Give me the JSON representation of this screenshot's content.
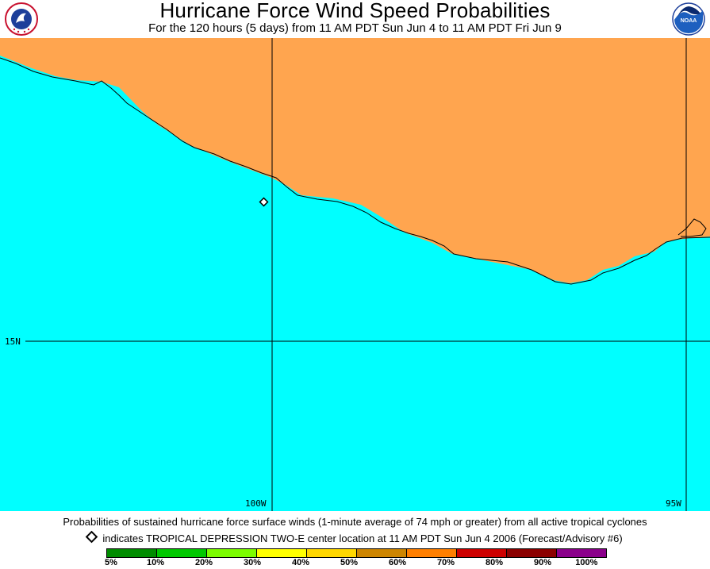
{
  "header": {
    "title": "Hurricane Force Wind Speed Probabilities",
    "subtitle": "For the 120 hours (5 days) from 11 AM PDT Sun Jun 4 to 11 AM PDT Fri Jun 9"
  },
  "logos": {
    "left": {
      "icon": "nws-logo",
      "text": "NATIONAL WEATHER SERVICE"
    },
    "right": {
      "icon": "noaa-logo",
      "text": "NOAA"
    }
  },
  "map": {
    "colors": {
      "ocean": "#00ffff",
      "land": "#ffa54f",
      "coast": "#000000"
    },
    "grid_labels": {
      "lat_15": "15N",
      "lon_100": "100W",
      "lon_95": "95W"
    },
    "storm_marker": {
      "icon": "diamond-icon",
      "name": "TROPICAL DEPRESSION TWO-E"
    }
  },
  "footer": {
    "description": "Probabilities of sustained hurricane force surface winds (1-minute average of 74 mph or greater) from all active tropical cyclones",
    "marker_note": "indicates TROPICAL DEPRESSION TWO-E center location at 11 AM PDT Sun Jun 4 2006 (Forecast/Advisory #6)"
  },
  "legend": {
    "colors": [
      "#008c00",
      "#00c800",
      "#7cfc00",
      "#ffff00",
      "#ffd700",
      "#cd8500",
      "#ff7f00",
      "#cd0000",
      "#8b0000",
      "#8b008b"
    ],
    "labels": [
      "5%",
      "10%",
      "20%",
      "30%",
      "40%",
      "50%",
      "60%",
      "70%",
      "80%",
      "90%",
      "100%"
    ]
  }
}
